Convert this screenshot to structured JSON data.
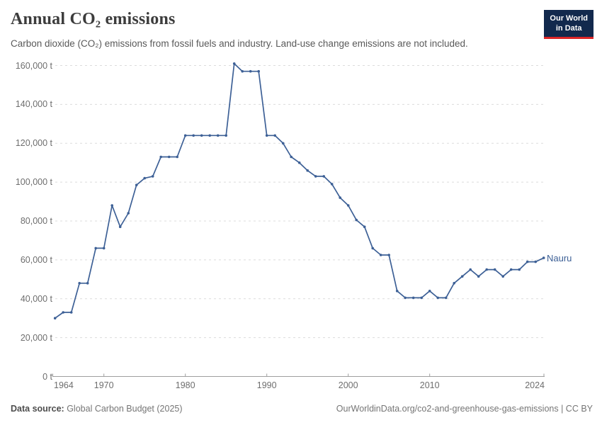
{
  "header": {
    "title": "Annual CO₂ emissions",
    "subtitle": "Carbon dioxide (CO₂) emissions from fossil fuels and industry. Land-use change emissions are not included.",
    "logo": {
      "line1": "Our World",
      "line2": "in Data",
      "bg_color": "#12294d",
      "accent_color": "#dc2527"
    }
  },
  "chart_data": {
    "type": "line",
    "title": "Annual CO₂ emissions",
    "unit": "t",
    "xlabel": "",
    "ylabel": "",
    "xlim": [
      1964,
      2024
    ],
    "ylim": [
      0,
      160000
    ],
    "grid": true,
    "legend_position": "end-of-line",
    "x": [
      1964,
      1965,
      1966,
      1967,
      1968,
      1969,
      1970,
      1971,
      1972,
      1973,
      1974,
      1975,
      1976,
      1977,
      1978,
      1979,
      1980,
      1981,
      1982,
      1983,
      1984,
      1985,
      1986,
      1987,
      1988,
      1989,
      1990,
      1991,
      1992,
      1993,
      1994,
      1995,
      1996,
      1997,
      1998,
      1999,
      2000,
      2001,
      2002,
      2003,
      2004,
      2005,
      2006,
      2007,
      2008,
      2009,
      2010,
      2011,
      2012,
      2013,
      2014,
      2015,
      2016,
      2017,
      2018,
      2019,
      2020,
      2021,
      2022,
      2023,
      2024
    ],
    "series": [
      {
        "name": "Nauru",
        "color": "#3d6096",
        "values": [
          30000,
          33000,
          33000,
          48000,
          48000,
          66000,
          66000,
          88000,
          77000,
          84000,
          98500,
          102000,
          103000,
          113000,
          113000,
          113000,
          124000,
          124000,
          124000,
          124000,
          124000,
          124000,
          161000,
          157000,
          157000,
          157000,
          124000,
          124000,
          120000,
          113000,
          110000,
          106000,
          103000,
          103000,
          99000,
          92000,
          88000,
          80500,
          77000,
          66000,
          62500,
          62500,
          44000,
          40500,
          40500,
          40500,
          44000,
          40500,
          40500,
          48000,
          51500,
          55000,
          51500,
          55000,
          55000,
          51500,
          55000,
          55000,
          59000,
          59000,
          61000
        ]
      }
    ],
    "y_ticks": [
      {
        "value": 0,
        "label": "0 t"
      },
      {
        "value": 20000,
        "label": "20,000 t"
      },
      {
        "value": 40000,
        "label": "40,000 t"
      },
      {
        "value": 60000,
        "label": "60,000 t"
      },
      {
        "value": 80000,
        "label": "80,000 t"
      },
      {
        "value": 100000,
        "label": "100,000 t"
      },
      {
        "value": 120000,
        "label": "120,000 t"
      },
      {
        "value": 140000,
        "label": "140,000 t"
      },
      {
        "value": 160000,
        "label": "160,000 t"
      }
    ],
    "x_ticks": [
      {
        "year": 1964,
        "label": "1964",
        "align": "start"
      },
      {
        "year": 1970,
        "label": "1970",
        "align": "center"
      },
      {
        "year": 1980,
        "label": "1980",
        "align": "center"
      },
      {
        "year": 1990,
        "label": "1990",
        "align": "center"
      },
      {
        "year": 2000,
        "label": "2000",
        "align": "center"
      },
      {
        "year": 2010,
        "label": "2010",
        "align": "center"
      },
      {
        "year": 2024,
        "label": "2024",
        "align": "end"
      }
    ]
  },
  "footer": {
    "source_label": "Data source:",
    "source_value": " Global Carbon Budget (2025)",
    "right_text": "OurWorldinData.org/co2-and-greenhouse-gas-emissions | CC BY"
  }
}
